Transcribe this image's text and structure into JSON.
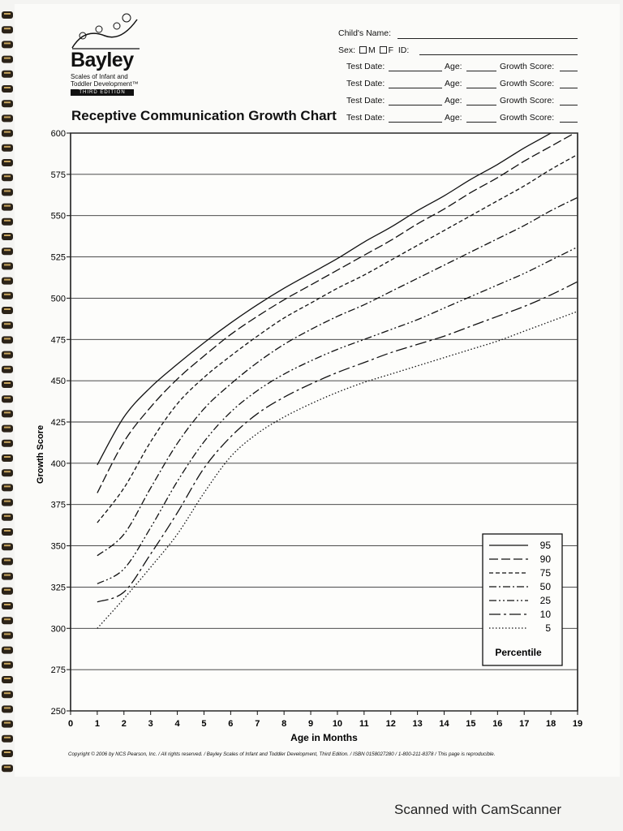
{
  "brand": {
    "name": "Bayley",
    "subtitle": "Scales of Infant and Toddler Development™",
    "edition": "THIRD EDITION"
  },
  "form": {
    "child_name_label": "Child's Name:",
    "sex_label": "Sex:",
    "male_label": "M",
    "female_label": "F",
    "id_label": "ID:",
    "test_rows": [
      {
        "date_label": "Test Date:",
        "age_label": "Age:",
        "score_label": "Growth Score:"
      },
      {
        "date_label": "Test Date:",
        "age_label": "Age:",
        "score_label": "Growth Score:"
      },
      {
        "date_label": "Test Date:",
        "age_label": "Age:",
        "score_label": "Growth Score:"
      },
      {
        "date_label": "Test Date:",
        "age_label": "Age:",
        "score_label": "Growth Score:"
      }
    ]
  },
  "footer": "Copyright © 2006 by NCS Pearson, Inc. / All rights reserved. / Bayley Scales of Infant and Toddler Development, Third Edition. / ISBN 0158027280 / 1-800-211-8378 / This page is reproducible.",
  "scanner_watermark": "Scanned with CamScanner",
  "chart_data": {
    "type": "line",
    "title": "Receptive Communication Growth Chart",
    "xlabel": "Age in Months",
    "ylabel": "Growth Score",
    "xlim": [
      0,
      19
    ],
    "ylim": [
      250,
      600
    ],
    "x_ticks": [
      0,
      1,
      2,
      3,
      4,
      5,
      6,
      7,
      8,
      9,
      10,
      11,
      12,
      13,
      14,
      15,
      16,
      17,
      18,
      19
    ],
    "y_ticks": [
      250,
      275,
      300,
      325,
      350,
      375,
      400,
      425,
      450,
      475,
      500,
      525,
      550,
      575,
      600
    ],
    "grid": "horizontal",
    "legend": {
      "title": "Percentile",
      "placement": "bottom-right"
    },
    "x": [
      1,
      2,
      3,
      4,
      5,
      6,
      7,
      8,
      9,
      10,
      11,
      12,
      13,
      14,
      15,
      16,
      17,
      18,
      19
    ],
    "series": [
      {
        "name": "95",
        "dash": "solid",
        "values": [
          399,
          428,
          446,
          460,
          473,
          485,
          496,
          506,
          515,
          524,
          534,
          543,
          553,
          562,
          572,
          581,
          591,
          600,
          610
        ]
      },
      {
        "name": "90",
        "dash": "long-dash",
        "values": [
          382,
          413,
          434,
          451,
          465,
          478,
          489,
          499,
          508,
          517,
          526,
          535,
          545,
          554,
          564,
          573,
          583,
          592,
          601
        ]
      },
      {
        "name": "75",
        "dash": "short-dash",
        "values": [
          364,
          385,
          413,
          436,
          452,
          465,
          477,
          488,
          497,
          506,
          514,
          523,
          532,
          541,
          550,
          559,
          568,
          578,
          587
        ]
      },
      {
        "name": "50",
        "dash": "dash-dot",
        "values": [
          344,
          357,
          385,
          412,
          433,
          448,
          461,
          472,
          481,
          489,
          496,
          504,
          512,
          520,
          528,
          536,
          544,
          553,
          561
        ]
      },
      {
        "name": "25",
        "dash": "dash-dot-dot",
        "values": [
          327,
          336,
          361,
          389,
          413,
          431,
          444,
          454,
          462,
          469,
          475,
          481,
          487,
          494,
          501,
          508,
          515,
          523,
          531
        ]
      },
      {
        "name": "10",
        "dash": "long-dash-dot",
        "values": [
          316,
          322,
          345,
          370,
          397,
          416,
          430,
          440,
          448,
          455,
          461,
          467,
          472,
          477,
          483,
          489,
          495,
          502,
          510
        ]
      },
      {
        "name": "5",
        "dash": "dotted",
        "values": [
          300,
          318,
          337,
          357,
          382,
          404,
          418,
          428,
          436,
          443,
          449,
          454,
          459,
          464,
          469,
          474,
          480,
          486,
          492
        ]
      }
    ]
  }
}
